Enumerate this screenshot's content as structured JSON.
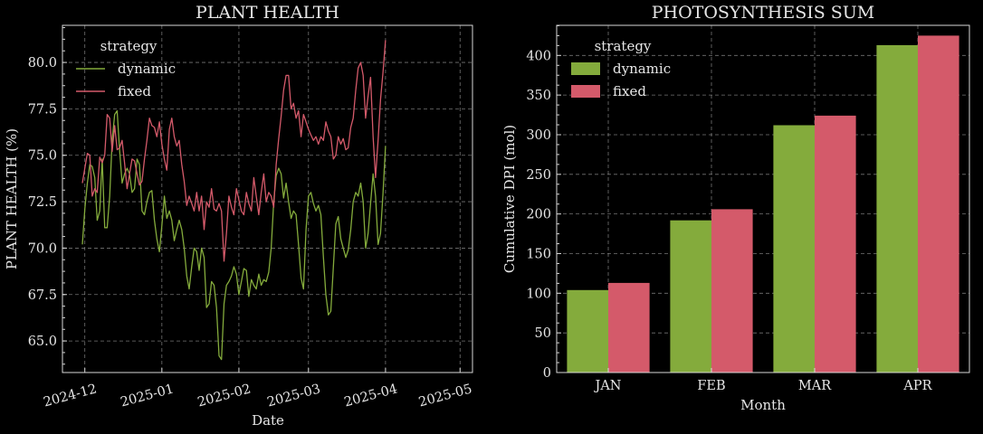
{
  "colors": {
    "dynamic": "#84ab3c",
    "fixed": "#d45a6a",
    "background": "#000000",
    "grid": "#9a9a9a",
    "text": "#e6e6e6"
  },
  "chart_data": [
    {
      "type": "line",
      "title": "PLANT HEALTH",
      "xlabel": "Date",
      "ylabel": "PLANT HEALTH (%)",
      "ylim": [
        63.3,
        82.0
      ],
      "xlim": [
        "2024-11-22",
        "2025-05-06"
      ],
      "yticks": [
        65.0,
        67.5,
        70.0,
        72.5,
        75.0,
        77.5,
        80.0
      ],
      "ytick_labels": [
        "65.0",
        "67.5",
        "70.0",
        "72.5",
        "75.0",
        "77.5",
        "80.0"
      ],
      "xticks": [
        "2024-12-01",
        "2025-01-01",
        "2025-02-01",
        "2025-03-01",
        "2025-04-01",
        "2025-05-01"
      ],
      "xtick_labels": [
        "2024-12",
        "2025-01",
        "2025-02",
        "2025-03",
        "2025-04",
        "2025-05"
      ],
      "grid": true,
      "legend": {
        "title": "strategy",
        "placement": "top-left"
      },
      "x_start": "2024-11-30",
      "x_step_days": 1,
      "series": [
        {
          "name": "dynamic",
          "values": [
            70.2,
            72.1,
            73.5,
            74.5,
            74.4,
            73.8,
            71.5,
            72.0,
            74.8,
            71.1,
            71.1,
            72.8,
            75.8,
            77.2,
            77.4,
            75.3,
            73.5,
            74.0,
            74.3,
            74.0,
            73.0,
            73.2,
            74.8,
            74.5,
            72.0,
            71.8,
            72.5,
            73.0,
            73.1,
            71.5,
            70.5,
            69.8,
            71.2,
            72.8,
            71.6,
            72.0,
            71.5,
            70.4,
            71.0,
            71.5,
            71.0,
            70.0,
            68.5,
            67.8,
            69.0,
            70.0,
            69.8,
            68.8,
            70.0,
            69.5,
            66.8,
            67.0,
            68.2,
            68.0,
            66.8,
            64.2,
            64.0,
            67.0,
            68.0,
            68.2,
            68.5,
            69.0,
            68.6,
            67.5,
            68.2,
            68.9,
            68.8,
            67.4,
            68.3,
            68.0,
            67.8,
            68.6,
            68.0,
            68.3,
            68.2,
            68.7,
            70.0,
            72.5,
            73.9,
            74.3,
            74.0,
            72.7,
            73.5,
            72.5,
            71.6,
            72.0,
            71.8,
            70.2,
            68.4,
            67.8,
            71.0,
            72.8,
            73.0,
            72.4,
            72.0,
            72.3,
            71.8,
            69.5,
            67.5,
            66.4,
            66.6,
            69.0,
            71.3,
            71.7,
            70.5,
            70.0,
            69.5,
            69.9,
            71.0,
            72.5,
            73.0,
            72.8,
            73.5,
            72.5,
            70.0,
            70.8,
            72.4,
            74.0,
            72.8,
            70.2,
            70.8,
            73.0,
            75.5
          ]
        },
        {
          "name": "fixed",
          "values": [
            73.5,
            74.3,
            75.1,
            75.0,
            72.8,
            73.2,
            73.0,
            74.9,
            74.6,
            75.0,
            77.2,
            77.0,
            75.2,
            76.6,
            75.3,
            75.4,
            75.8,
            74.6,
            73.2,
            74.0,
            74.8,
            74.7,
            74.0,
            73.4,
            73.6,
            74.8,
            75.8,
            77.0,
            76.6,
            76.5,
            76.0,
            76.8,
            75.6,
            74.8,
            74.2,
            76.4,
            77.0,
            76.0,
            75.5,
            75.8,
            74.5,
            73.6,
            72.3,
            72.8,
            72.4,
            72.0,
            73.0,
            72.0,
            72.8,
            71.0,
            72.5,
            72.2,
            73.2,
            72.1,
            72.0,
            72.4,
            72.0,
            69.3,
            70.8,
            72.8,
            72.2,
            71.8,
            73.2,
            72.6,
            72.0,
            71.8,
            73.0,
            72.4,
            72.0,
            73.8,
            72.8,
            71.8,
            73.0,
            74.0,
            72.5,
            73.0,
            72.8,
            72.2,
            74.5,
            75.9,
            77.1,
            78.5,
            79.3,
            79.3,
            77.5,
            77.8,
            77.0,
            77.4,
            76.0,
            77.2,
            76.8,
            76.4,
            76.1,
            75.8,
            76.0,
            75.6,
            76.0,
            75.8,
            76.8,
            76.3,
            76.0,
            74.8,
            75.0,
            76.0,
            75.6,
            75.9,
            75.3,
            75.4,
            76.5,
            77.0,
            78.5,
            79.7,
            80.0,
            79.3,
            77.0,
            78.2,
            79.2,
            76.0,
            73.8,
            75.8,
            78.0,
            79.5,
            81.2
          ]
        }
      ]
    },
    {
      "type": "bar",
      "title": "PHOTOSYNTHESIS SUM",
      "xlabel": "Month",
      "ylabel": "Cumulative DPI (mol)",
      "ylim": [
        0,
        438
      ],
      "yticks": [
        0,
        50,
        100,
        150,
        200,
        250,
        300,
        350,
        400
      ],
      "ytick_labels": [
        "0",
        "50",
        "100",
        "150",
        "200",
        "250",
        "300",
        "350",
        "400"
      ],
      "categories": [
        "JAN",
        "FEB",
        "MAR",
        "APR"
      ],
      "grid": true,
      "legend": {
        "title": "strategy",
        "placement": "top-left"
      },
      "series": [
        {
          "name": "dynamic",
          "values": [
            104,
            192,
            312,
            413
          ]
        },
        {
          "name": "fixed",
          "values": [
            113,
            206,
            324,
            425
          ]
        }
      ]
    }
  ]
}
